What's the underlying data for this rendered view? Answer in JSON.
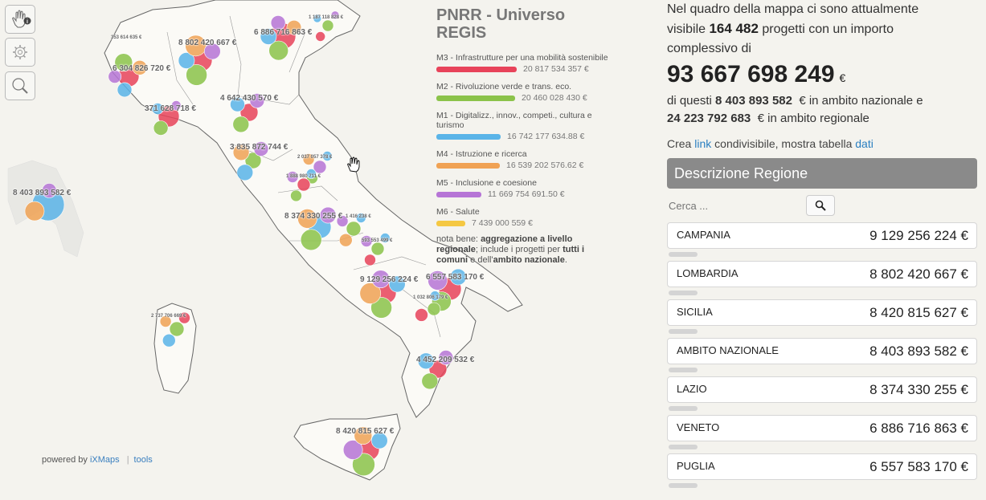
{
  "legend": {
    "title": "PNRR - Universo REGIS",
    "items": [
      {
        "label": "M3 - Infrastrutture per una mobilità sostenibile",
        "value": "20 817 534 357 €",
        "color": "#e8435a",
        "fill": 1.0
      },
      {
        "label": "M2 - Rivoluzione verde e trans. eco.",
        "value": "20 460 028 430 €",
        "color": "#8bc34a",
        "fill": 0.98
      },
      {
        "label": "M1 - Digitalizz., innov., competi., cultura e turismo",
        "value": "16 742 177 634.88 €",
        "color": "#5ab4e8",
        "fill": 0.8
      },
      {
        "label": "M4 - Istruzione e ricerca",
        "value": "16 539 202 576.62 €",
        "color": "#f0a254",
        "fill": 0.79
      },
      {
        "label": "M5 - Inclusione e coesione",
        "value": "11 669 754 691.50 €",
        "color": "#b675d6",
        "fill": 0.56
      },
      {
        "label": "M6 - Salute",
        "value": "7 439 000 559 €",
        "color": "#f5c842",
        "fill": 0.36
      }
    ],
    "note_prefix": "nota bene: ",
    "note_b1": "aggregazione a livello regionale",
    "note_mid": "; include i progetti per ",
    "note_b2": "tutti i comuni",
    "note_mid2": " e dell'",
    "note_b3": "ambito nazionale",
    "note_end": "."
  },
  "map_labels": [
    "6 304 826 720 €",
    "8 802 420 667 €",
    "6 886 716 863 €",
    "1 187 118 828 €",
    "371 628 718 €",
    "4 642 430 570 €",
    "3 835 872 744 €",
    "2 037 057 378 €",
    "8 374 330 255 €",
    "1 416 238 €",
    "9 129 256 224 €",
    "6 557 583 170 €",
    "1 032 806 179 €",
    "4 452 209 532 €",
    "2 737 706 669 €",
    "8 420 815 627 €",
    "8 403 893 582 €",
    "353 614 635 €",
    "1 888 980 711 €",
    "593 553 499 €"
  ],
  "powered": {
    "prefix": "powered by",
    "link": "iXMaps",
    "tools": "tools"
  },
  "summary": {
    "line1": "Nel quadro della mappa ci sono attualmente",
    "line2a": "visibile",
    "count": "164 482",
    "line2b": "progetti con un importo",
    "line3": "complessivo di",
    "total": "93 667 698 249",
    "currency": "€",
    "sub1a": "di questi",
    "national": "8 403 893 582",
    "sub1b": "€ in ambito nazionale e",
    "regional": "24 223 792 683",
    "sub2b": "€ in ambito regionale"
  },
  "links": {
    "prefix": "Crea",
    "link": "link",
    "mid": "condivisibile, mostra tabella",
    "data": "dati"
  },
  "table": {
    "header": "Descrizione Regione",
    "search_placeholder": "Cerca ...",
    "rows": [
      {
        "name": "CAMPANIA",
        "value": "9 129 256 224 €"
      },
      {
        "name": "LOMBARDIA",
        "value": "8 802 420 667 €"
      },
      {
        "name": "SICILIA",
        "value": "8 420 815 627 €"
      },
      {
        "name": "AMBITO NAZIONALE",
        "value": "8 403 893 582 €"
      },
      {
        "name": "LAZIO",
        "value": "8 374 330 255 €"
      },
      {
        "name": "VENETO",
        "value": "6 886 716 863 €"
      },
      {
        "name": "PUGLIA",
        "value": "6 557 583 170 €"
      }
    ]
  },
  "icons": {
    "pan": "hand-info-icon",
    "settings": "gear-icon",
    "search": "magnifier-icon",
    "cursor": "hand-cursor-icon"
  }
}
